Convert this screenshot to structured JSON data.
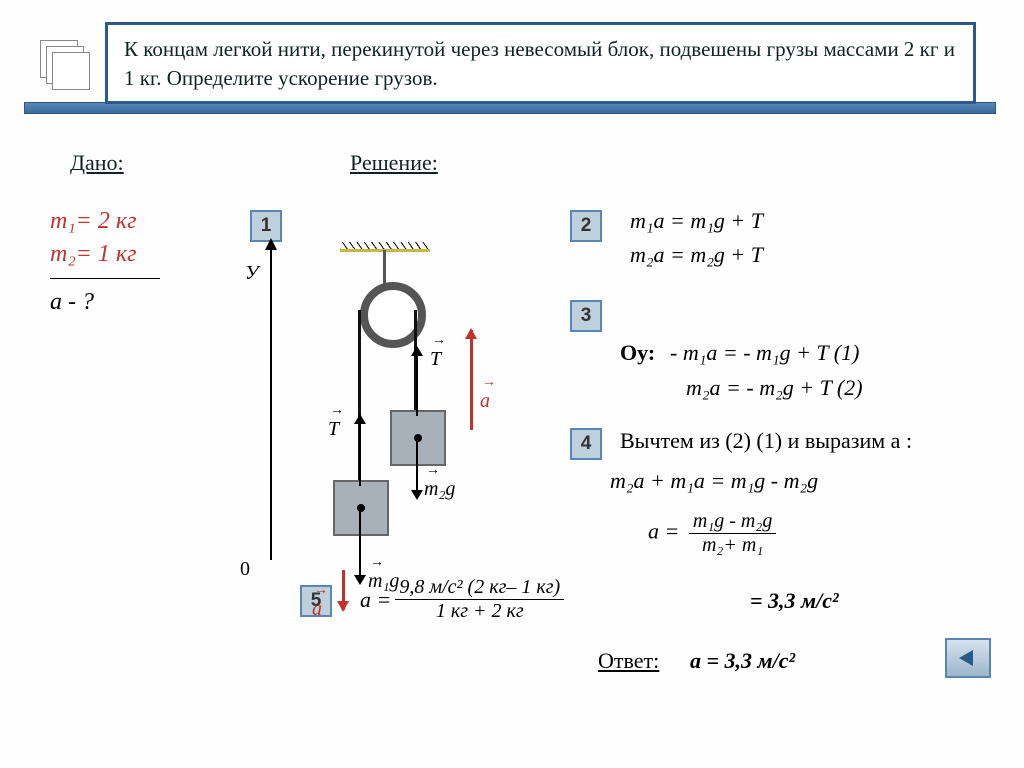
{
  "problem": "К концам легкой нити, перекинутой через  невесомый блок, подвешены грузы массами 2 кг и 1 кг.  Определите  ускорение грузов.",
  "given": {
    "label": "Дано:",
    "m1": "m₁= 2 кг",
    "m2": "m₂= 1 кг",
    "find": "a  -   ?"
  },
  "solution_label": "Решение:",
  "steps": {
    "s1": "1",
    "s2": "2",
    "s3": "3",
    "s4": "4",
    "s5": "5"
  },
  "diagram": {
    "y": "У",
    "zero": "0",
    "T": "T",
    "m1g": "m₁g",
    "m2g": "m₂g",
    "a": "a"
  },
  "eq2a": "m₁a = m₁g + T",
  "eq2b": "m₂a = m₂g + T",
  "eq3_lbl": "Оу:",
  "eq3a": "- m₁a = - m₁g + T   (1)",
  "eq3b": "m₂a = - m₂g + T  (2)",
  "eq4_lbl": "Вычтем из  (2)  (1) и выразим a :",
  "eq4a": "m₂a + m₁a =  m₁g - m₂g",
  "eq4b_lhs": "a  = ",
  "eq4b_num": "m₁g - m₂g",
  "eq4b_den": "m₂+ m₁",
  "eq5_lhs": "a = ",
  "eq5_num": "9,8 м/с² (2 кг– 1 кг)",
  "eq5_den": "1 кг + 2 кг",
  "eq5_res": "=  3,3 м/с²",
  "answer": {
    "label": "Ответ:",
    "value": "a = 3,3 м/с²"
  },
  "colors": {
    "accent": "#c2332b",
    "frame": "#2a5a8a",
    "step_bg": "#bfd0dc"
  }
}
